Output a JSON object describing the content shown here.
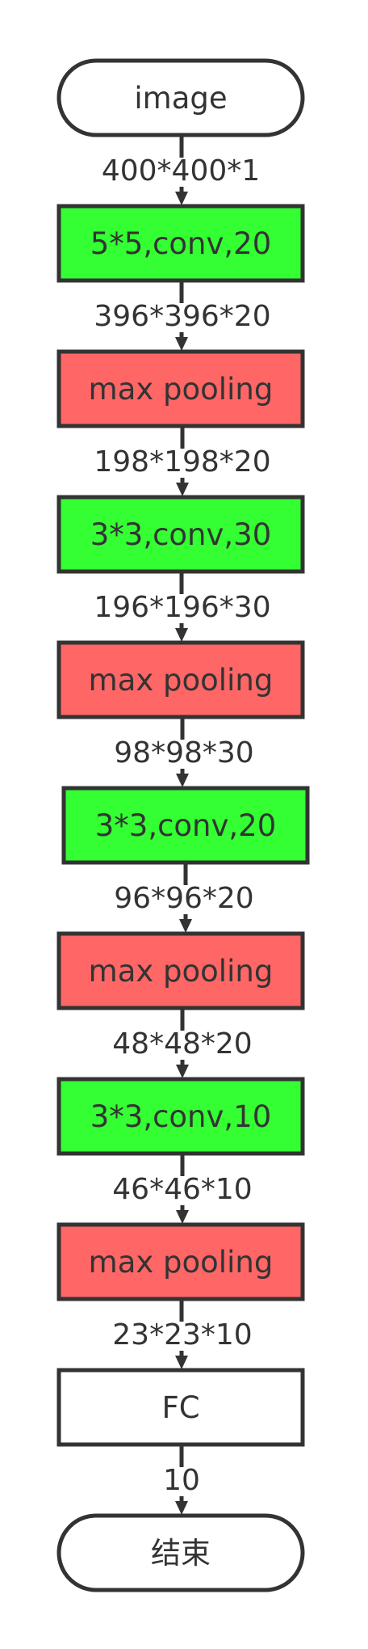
{
  "colors": {
    "stroke": "#333333",
    "text": "#333333",
    "conv_fill": "#33ff33",
    "pool_fill": "#ff6666",
    "plain_fill": "#ffffff"
  },
  "nodes": [
    {
      "label": "image",
      "kind": "terminal"
    },
    {
      "label": "5*5,conv,20",
      "kind": "conv"
    },
    {
      "label": "max pooling",
      "kind": "pool"
    },
    {
      "label": "3*3,conv,30",
      "kind": "conv"
    },
    {
      "label": "max pooling",
      "kind": "pool"
    },
    {
      "label": "3*3,conv,20",
      "kind": "conv"
    },
    {
      "label": "max pooling",
      "kind": "pool"
    },
    {
      "label": "3*3,conv,10",
      "kind": "conv"
    },
    {
      "label": "max pooling",
      "kind": "pool"
    },
    {
      "label": "FC",
      "kind": "plain"
    },
    {
      "label": "结束",
      "kind": "terminal"
    }
  ],
  "edges": [
    {
      "label": "400*400*1"
    },
    {
      "label": "396*396*20"
    },
    {
      "label": "198*198*20"
    },
    {
      "label": "196*196*30"
    },
    {
      "label": "98*98*30"
    },
    {
      "label": "96*96*20"
    },
    {
      "label": "48*48*20"
    },
    {
      "label": "46*46*10"
    },
    {
      "label": "23*23*10"
    },
    {
      "label": "10"
    }
  ]
}
